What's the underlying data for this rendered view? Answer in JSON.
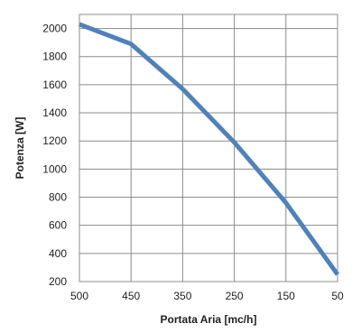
{
  "chart_data": {
    "type": "line",
    "xlabel": "Portata Aria [mc/h]",
    "ylabel": "Potenza [W]",
    "x_ticks": [
      "500",
      "450",
      "350",
      "250",
      "150",
      "50"
    ],
    "y_ticks": [
      200,
      400,
      600,
      800,
      1000,
      1200,
      1400,
      1600,
      1800,
      2000
    ],
    "ylim": [
      200,
      2100
    ],
    "grid": true,
    "legend": "none",
    "series": [
      {
        "x": [
          "500",
          "450",
          "350",
          "250",
          "150",
          "50"
        ],
        "values": [
          2030,
          1890,
          1570,
          1190,
          760,
          250
        ],
        "color": "#4f81bd"
      }
    ]
  }
}
